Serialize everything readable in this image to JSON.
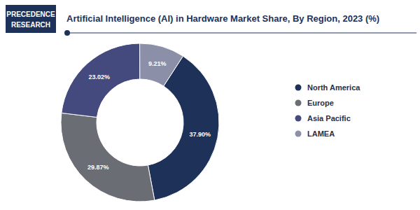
{
  "chart_data": {
    "type": "pie",
    "title": "Artificial Intelligence (AI) in Hardware Market Share, By Region, 2023 (%)",
    "annotations": [
      "PRECEDENCE",
      "RESEARCH"
    ],
    "categories": [
      "North America",
      "Europe",
      "Asia Pacific",
      "LAMEA"
    ],
    "values": [
      37.9,
      29.87,
      23.02,
      9.21
    ],
    "value_labels": [
      "37.90%",
      "29.87%",
      "23.02%",
      "9.21%"
    ],
    "colors": [
      "#1e3259",
      "#6a6d74",
      "#444a7e",
      "#8b90a8"
    ],
    "data_labels": true,
    "legend": "right"
  }
}
